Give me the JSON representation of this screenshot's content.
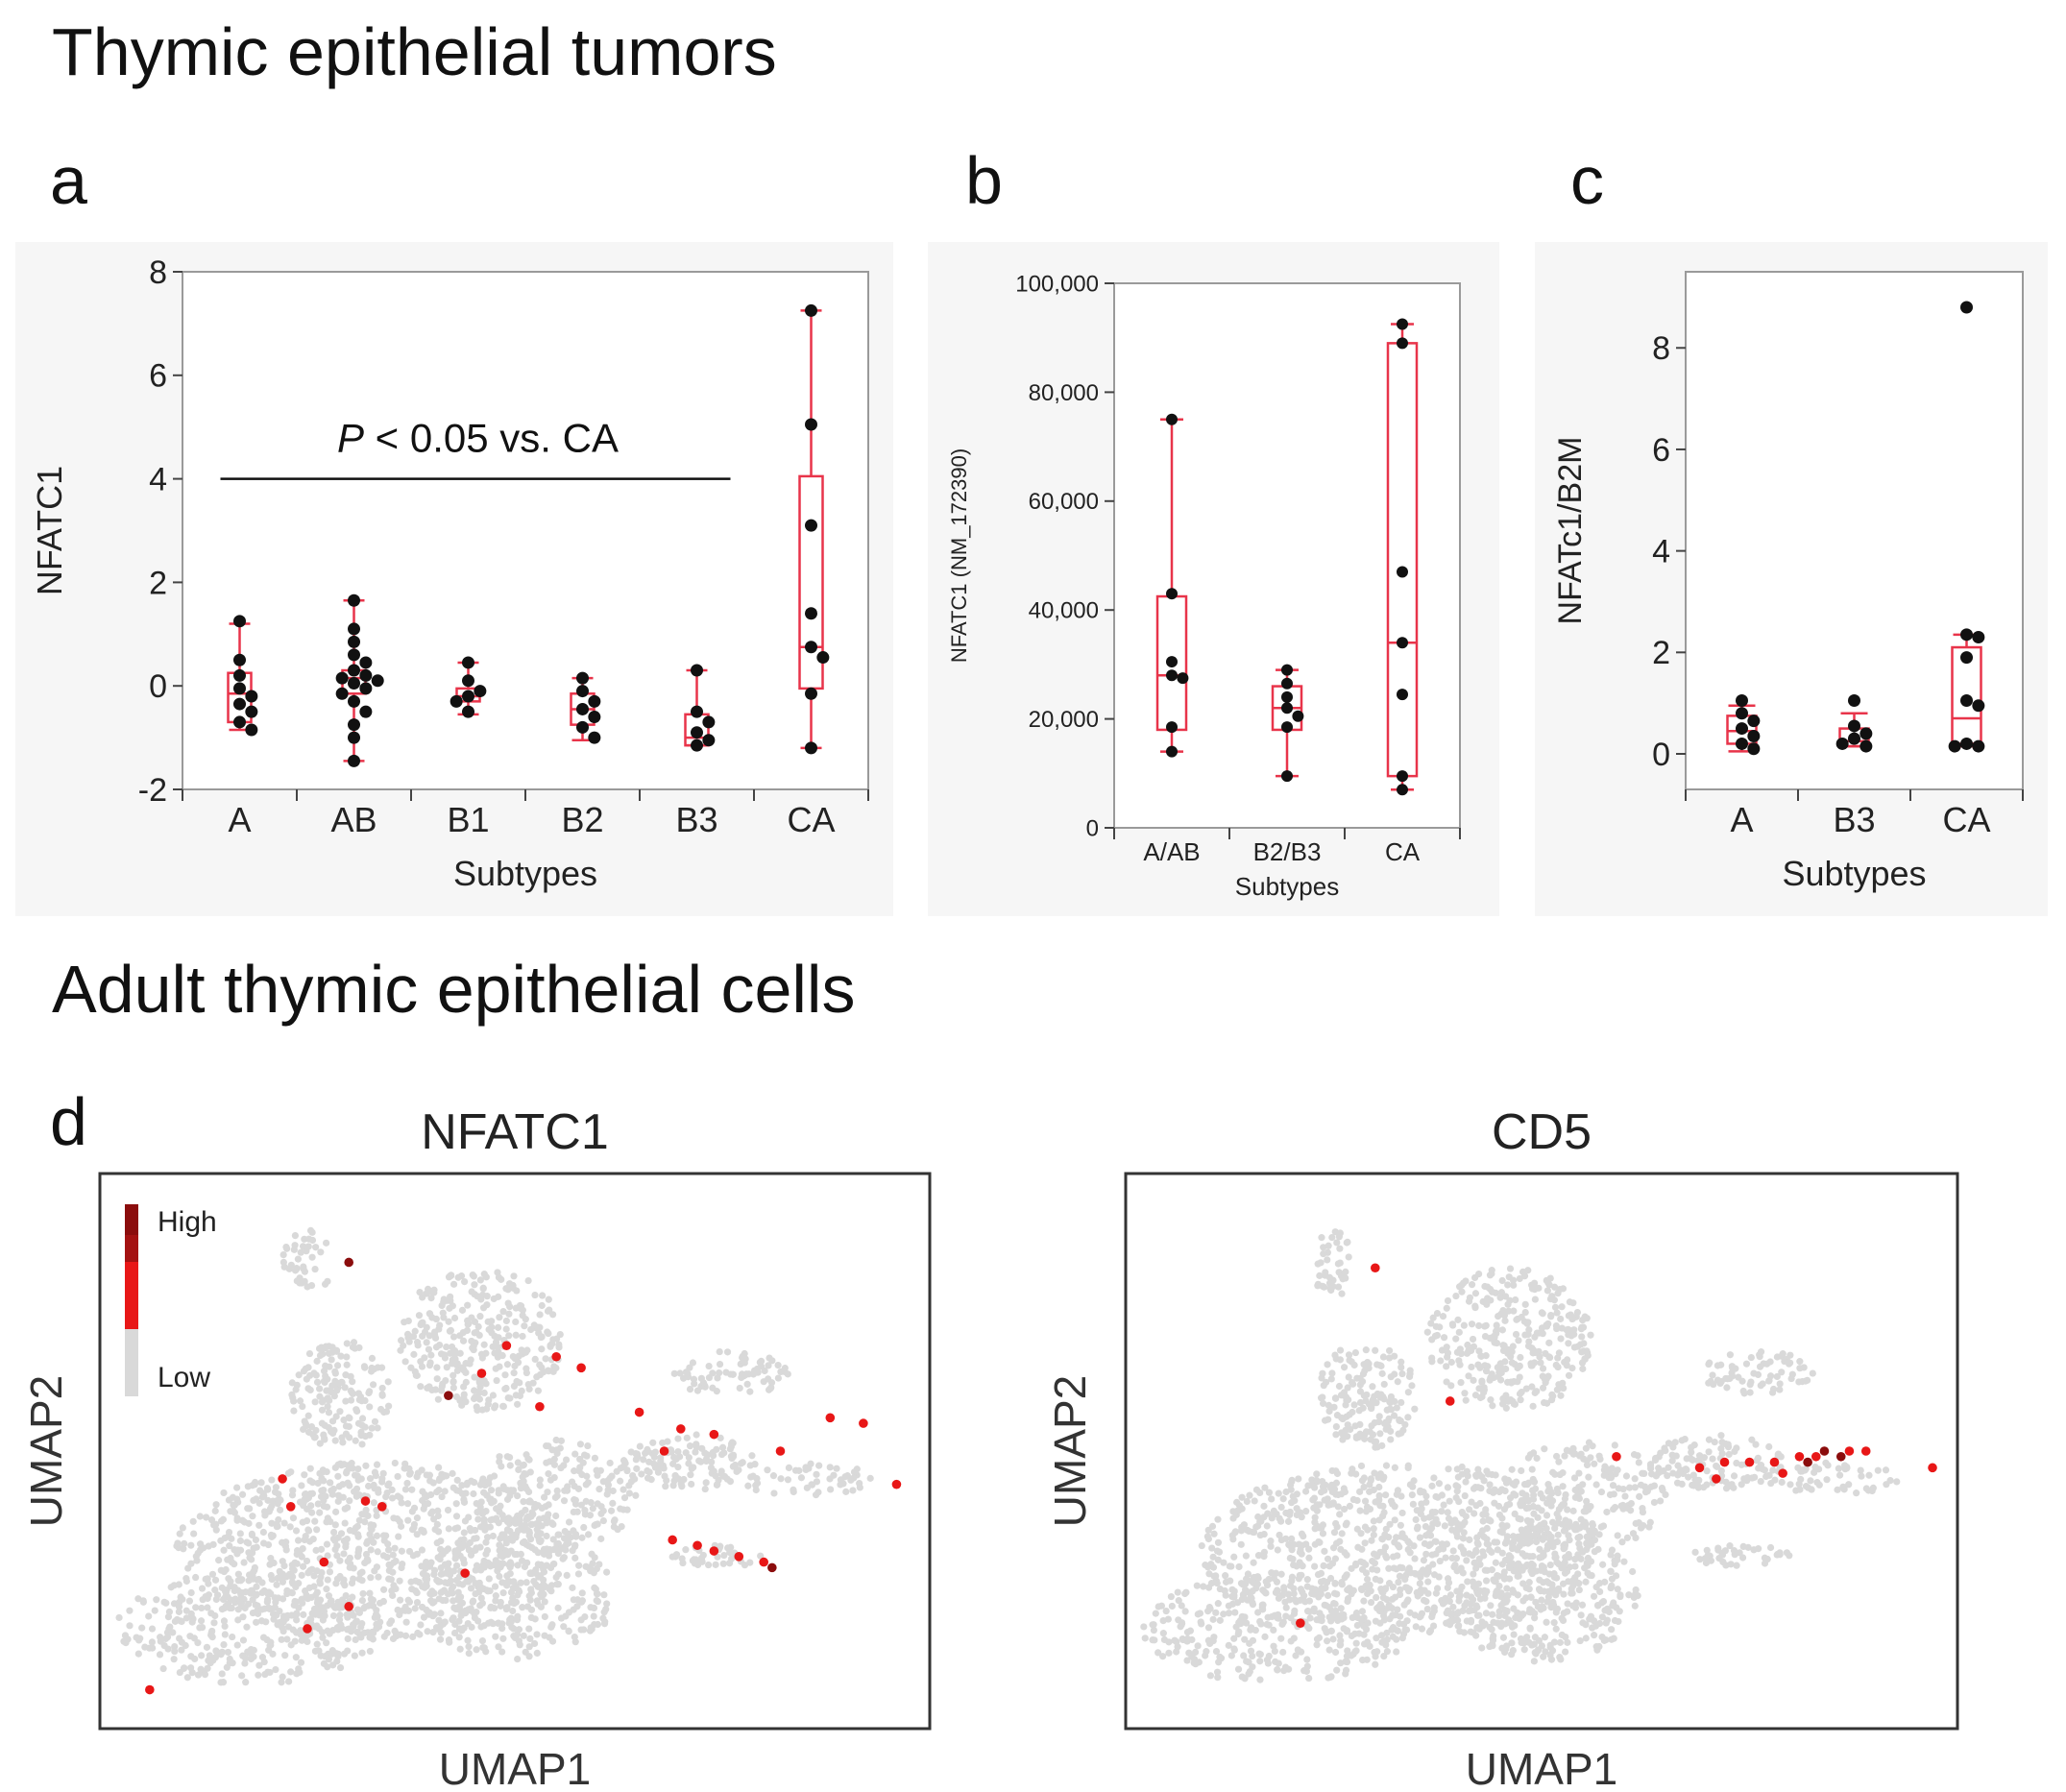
{
  "figure": {
    "title_top": "Thymic epithelial tumors",
    "title_bottom": "Adult thymic epithelial cells",
    "colors": {
      "box": "#e8344a",
      "dot": "#111111",
      "umap_bg": "#d9d9d9",
      "umap_hi": "#e81717",
      "umap_top": "#8b0d0d"
    }
  },
  "chart_data": [
    {
      "panel_label": "a",
      "type": "box",
      "ylabel": "NFATC1",
      "xlabel": "Subtypes",
      "ylim": [
        -2,
        8
      ],
      "yticks": [
        "-2",
        "0",
        "2",
        "4",
        "6",
        "8"
      ],
      "annotation": {
        "italic": "P",
        "text": " < 0.05 vs. CA",
        "line_from": "A",
        "line_to": "B3",
        "y": 4
      },
      "categories": [
        "A",
        "AB",
        "B1",
        "B2",
        "B3",
        "CA"
      ],
      "boxes": [
        {
          "cat": "A",
          "min": -0.85,
          "q1": -0.7,
          "median": -0.15,
          "q3": 0.25,
          "max": 1.2
        },
        {
          "cat": "AB",
          "min": -1.45,
          "q1": -0.15,
          "median": 0.15,
          "q3": 0.3,
          "max": 1.65
        },
        {
          "cat": "B1",
          "min": -0.55,
          "q1": -0.3,
          "median": -0.2,
          "q3": -0.05,
          "max": 0.45
        },
        {
          "cat": "B2",
          "min": -1.05,
          "q1": -0.75,
          "median": -0.45,
          "q3": -0.15,
          "max": 0.15
        },
        {
          "cat": "B3",
          "min": -1.15,
          "q1": -1.15,
          "median": -1.0,
          "q3": -0.55,
          "max": 0.3
        },
        {
          "cat": "CA",
          "min": -1.2,
          "q1": -0.05,
          "median": 0.75,
          "q3": 4.05,
          "max": 7.25
        }
      ],
      "points": [
        {
          "cat": "A",
          "values": [
            1.25,
            0.5,
            0.2,
            -0.05,
            -0.2,
            -0.35,
            -0.5,
            -0.7,
            -0.85
          ]
        },
        {
          "cat": "AB",
          "values": [
            1.65,
            1.1,
            0.85,
            0.6,
            0.45,
            0.3,
            0.2,
            0.15,
            0.1,
            0.05,
            -0.05,
            -0.15,
            -0.3,
            -0.5,
            -0.75,
            -1.0,
            -1.45
          ]
        },
        {
          "cat": "B1",
          "values": [
            0.45,
            0.1,
            -0.1,
            -0.2,
            -0.3,
            -0.5
          ]
        },
        {
          "cat": "B2",
          "values": [
            0.15,
            -0.1,
            -0.3,
            -0.45,
            -0.6,
            -0.8,
            -1.0
          ]
        },
        {
          "cat": "B3",
          "values": [
            0.3,
            -0.5,
            -0.7,
            -0.9,
            -1.05,
            -1.15
          ]
        },
        {
          "cat": "CA",
          "values": [
            7.25,
            5.05,
            3.1,
            1.4,
            0.75,
            0.55,
            -0.15,
            -1.2
          ]
        }
      ]
    },
    {
      "panel_label": "b",
      "type": "box",
      "ylabel": "NFATC1 (NM_172390)",
      "xlabel": "Subtypes",
      "ylim": [
        0,
        100000
      ],
      "yticks": [
        "0",
        "20,000",
        "40,000",
        "60,000",
        "80,000",
        "100,000"
      ],
      "categories": [
        "A/AB",
        "B2/B3",
        "CA"
      ],
      "boxes": [
        {
          "cat": "A/AB",
          "min": 14000,
          "q1": 18000,
          "median": 28000,
          "q3": 42500,
          "max": 75000
        },
        {
          "cat": "B2/B3",
          "min": 9500,
          "q1": 18000,
          "median": 22000,
          "q3": 26000,
          "max": 29000
        },
        {
          "cat": "CA",
          "min": 7000,
          "q1": 9500,
          "median": 34000,
          "q3": 89000,
          "max": 92500
        }
      ],
      "points": [
        {
          "cat": "A/AB",
          "values": [
            75000,
            43000,
            30500,
            28000,
            27500,
            18500,
            14000
          ]
        },
        {
          "cat": "B2/B3",
          "values": [
            29000,
            26500,
            24000,
            22000,
            20500,
            18500,
            9500
          ]
        },
        {
          "cat": "CA",
          "values": [
            92500,
            89000,
            47000,
            34000,
            24500,
            9500,
            7000
          ]
        }
      ]
    },
    {
      "panel_label": "c",
      "type": "box",
      "ylabel": "NFATc1/B2M",
      "xlabel": "Subtypes",
      "ylim": [
        -0.7,
        9.5
      ],
      "yticks": [
        "0",
        "2",
        "4",
        "6",
        "8"
      ],
      "categories": [
        "A",
        "B3",
        "CA"
      ],
      "boxes": [
        {
          "cat": "A",
          "min": 0.05,
          "q1": 0.2,
          "median": 0.45,
          "q3": 0.75,
          "max": 0.95
        },
        {
          "cat": "B3",
          "min": 0.15,
          "q1": 0.15,
          "median": 0.25,
          "q3": 0.5,
          "max": 0.8
        },
        {
          "cat": "CA",
          "min": 0.15,
          "q1": 0.2,
          "median": 0.7,
          "q3": 2.1,
          "max": 2.35
        }
      ],
      "points": [
        {
          "cat": "A",
          "values": [
            1.05,
            0.8,
            0.65,
            0.5,
            0.35,
            0.2,
            0.1
          ]
        },
        {
          "cat": "B3",
          "values": [
            1.05,
            0.55,
            0.4,
            0.3,
            0.2,
            0.15
          ]
        },
        {
          "cat": "CA",
          "values": [
            8.8,
            2.35,
            2.3,
            1.9,
            1.05,
            0.95,
            0.2,
            0.15,
            0.15
          ]
        }
      ]
    },
    {
      "panel_label": "d",
      "type": "scatter",
      "title": "NFATC1",
      "xlabel": "UMAP1",
      "ylabel": "UMAP2",
      "legend": {
        "high": "High",
        "low": "Low",
        "position": "top-left"
      },
      "highlight": [
        [
          0.25,
          0.82
        ],
        [
          0.3,
          0.78
        ],
        [
          0.27,
          0.7
        ],
        [
          0.23,
          0.6
        ],
        [
          0.32,
          0.59
        ],
        [
          0.22,
          0.55
        ],
        [
          0.53,
          0.42
        ],
        [
          0.46,
          0.36
        ],
        [
          0.49,
          0.31
        ],
        [
          0.55,
          0.33
        ],
        [
          0.58,
          0.35
        ],
        [
          0.65,
          0.43
        ],
        [
          0.7,
          0.46
        ],
        [
          0.68,
          0.5
        ],
        [
          0.74,
          0.47
        ],
        [
          0.82,
          0.5
        ],
        [
          0.88,
          0.44
        ],
        [
          0.92,
          0.45
        ],
        [
          0.69,
          0.66
        ],
        [
          0.72,
          0.67
        ],
        [
          0.74,
          0.68
        ],
        [
          0.77,
          0.69
        ],
        [
          0.8,
          0.7
        ],
        [
          0.06,
          0.93
        ],
        [
          0.44,
          0.72
        ],
        [
          0.96,
          0.56
        ],
        [
          0.34,
          0.6
        ]
      ],
      "highlight_top": [
        [
          0.3,
          0.16
        ],
        [
          0.42,
          0.4
        ],
        [
          0.81,
          0.71
        ]
      ]
    },
    {
      "panel_label": "",
      "type": "scatter",
      "title": "CD5",
      "xlabel": "UMAP1",
      "ylabel": "UMAP2",
      "highlight": [
        [
          0.3,
          0.17
        ],
        [
          0.39,
          0.41
        ],
        [
          0.59,
          0.51
        ],
        [
          0.69,
          0.53
        ],
        [
          0.72,
          0.52
        ],
        [
          0.75,
          0.52
        ],
        [
          0.78,
          0.52
        ],
        [
          0.81,
          0.51
        ],
        [
          0.83,
          0.51
        ],
        [
          0.87,
          0.5
        ],
        [
          0.89,
          0.5
        ],
        [
          0.97,
          0.53
        ],
        [
          0.79,
          0.54
        ],
        [
          0.71,
          0.55
        ],
        [
          0.21,
          0.81
        ]
      ],
      "highlight_top": [
        [
          0.84,
          0.5
        ],
        [
          0.86,
          0.51
        ],
        [
          0.82,
          0.52
        ]
      ]
    }
  ]
}
